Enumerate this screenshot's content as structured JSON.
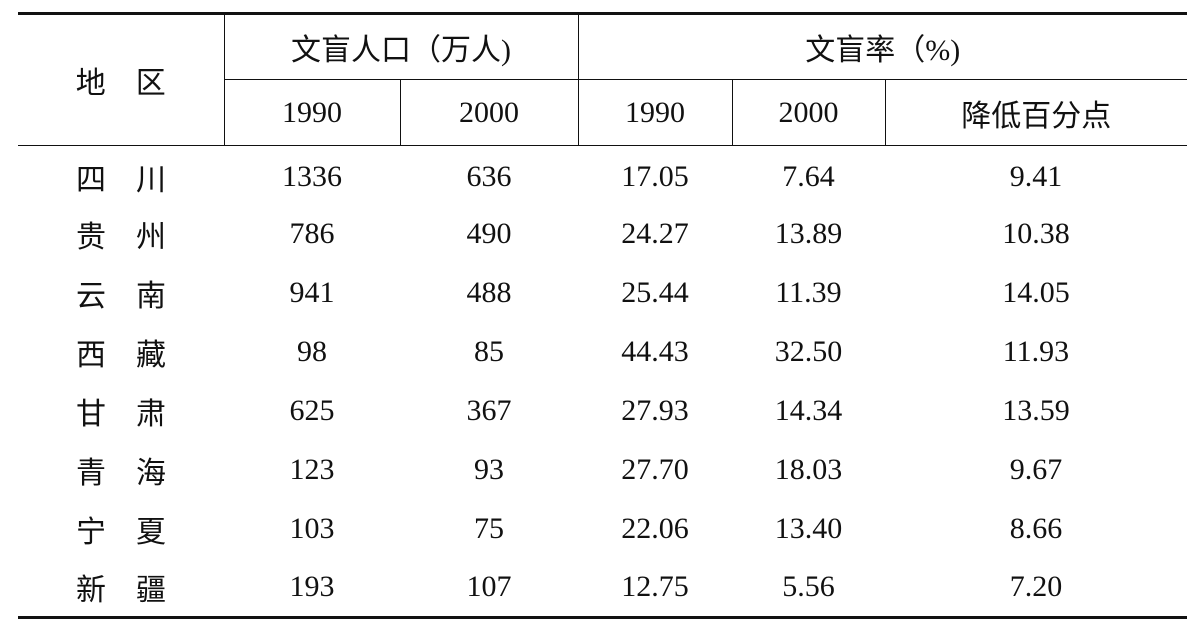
{
  "table": {
    "header": {
      "region": "地　区",
      "group1": "文盲人口（万人)",
      "group2": "文盲率（%)",
      "sub": [
        "1990",
        "2000",
        "1990",
        "2000",
        "降低百分点"
      ]
    },
    "rows": [
      [
        "四　川",
        "1336",
        "636",
        "17.05",
        "7.64",
        "9.41"
      ],
      [
        "贵　州",
        "786",
        "490",
        "24.27",
        "13.89",
        "10.38"
      ],
      [
        "云　南",
        "941",
        "488",
        "25.44",
        "11.39",
        "14.05"
      ],
      [
        "西　藏",
        "98",
        "85",
        "44.43",
        "32.50",
        "11.93"
      ],
      [
        "甘　肃",
        "625",
        "367",
        "27.93",
        "14.34",
        "13.59"
      ],
      [
        "青　海",
        "123",
        "93",
        "27.70",
        "18.03",
        "9.67"
      ],
      [
        "宁　夏",
        "103",
        "75",
        "22.06",
        "13.40",
        "8.66"
      ],
      [
        "新　疆",
        "193",
        "107",
        "12.75",
        "5.56",
        "7.20"
      ]
    ]
  }
}
